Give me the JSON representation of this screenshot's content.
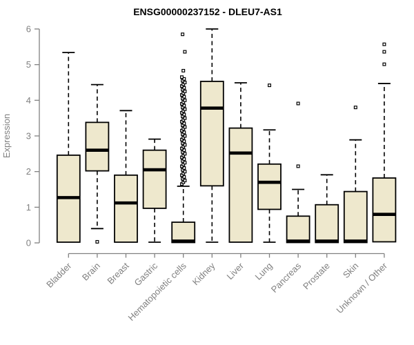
{
  "title": "ENSG00000237152 - DLEU7-AS1",
  "colors": {
    "background": "#FFFFFF",
    "box_fill": "#EEE8CD",
    "box_stroke": "#000000",
    "median_stroke": "#000000",
    "whisker_stroke": "#000000",
    "outlier_stroke": "#000000",
    "outlier_fill": "#FFFFFF",
    "axis_color": "#808080",
    "tick_label_color": "#808080",
    "title_color": "#000000"
  },
  "chart_data": {
    "type": "boxplot",
    "title": "ENSG00000237152 - DLEU7-AS1",
    "xlabel": "",
    "ylabel": "Expression",
    "ylim": [
      0,
      6
    ],
    "yticks": [
      0,
      1,
      2,
      3,
      4,
      5,
      6
    ],
    "grid": false,
    "legend_position": "none",
    "categories": [
      "Bladder",
      "Brain",
      "Breast",
      "Gastric",
      "Hematopoietic cells",
      "Kidney",
      "Liver",
      "Lung",
      "Pancreas",
      "Prostate",
      "Skin",
      "Unknown / Other"
    ],
    "series": [
      {
        "name": "Bladder",
        "whisker_low": 0.0,
        "q1": 0.02,
        "median": 1.27,
        "q3": 2.46,
        "whisker_high": 5.34,
        "outliers": []
      },
      {
        "name": "Brain",
        "whisker_low": 0.4,
        "q1": 2.02,
        "median": 2.6,
        "q3": 3.38,
        "whisker_high": 4.44,
        "outliers": [
          0.03
        ]
      },
      {
        "name": "Breast",
        "whisker_low": 0.0,
        "q1": 0.02,
        "median": 1.12,
        "q3": 1.9,
        "whisker_high": 3.71,
        "outliers": []
      },
      {
        "name": "Gastric",
        "whisker_low": 0.02,
        "q1": 0.97,
        "median": 2.05,
        "q3": 2.6,
        "whisker_high": 2.91,
        "outliers": []
      },
      {
        "name": "Hematopoietic cells",
        "whisker_low": 0.0,
        "q1": 0.01,
        "median": 0.05,
        "q3": 0.58,
        "whisker_high": 1.59,
        "outliers": [
          1.65,
          1.7,
          1.75,
          1.8,
          1.85,
          1.9,
          1.95,
          2.0,
          2.05,
          2.1,
          2.15,
          2.2,
          2.25,
          2.3,
          2.35,
          2.4,
          2.45,
          2.5,
          2.55,
          2.6,
          2.65,
          2.7,
          2.75,
          2.8,
          2.85,
          2.9,
          2.95,
          3.0,
          3.05,
          3.1,
          3.15,
          3.2,
          3.25,
          3.3,
          3.35,
          3.4,
          3.45,
          3.5,
          3.55,
          3.6,
          3.65,
          3.7,
          3.75,
          3.8,
          3.85,
          3.9,
          3.95,
          4.0,
          4.05,
          4.1,
          4.15,
          4.2,
          4.25,
          4.3,
          4.35,
          4.4,
          4.45,
          4.5,
          4.55,
          4.6,
          4.65,
          4.83,
          5.36,
          5.85
        ]
      },
      {
        "name": "Kidney",
        "whisker_low": 0.02,
        "q1": 1.6,
        "median": 3.78,
        "q3": 4.53,
        "whisker_high": 6.0,
        "outliers": []
      },
      {
        "name": "Liver",
        "whisker_low": 0.0,
        "q1": 0.02,
        "median": 2.52,
        "q3": 3.22,
        "whisker_high": 4.49,
        "outliers": []
      },
      {
        "name": "Lung",
        "whisker_low": 0.02,
        "q1": 0.94,
        "median": 1.7,
        "q3": 2.21,
        "whisker_high": 3.17,
        "outliers": [
          4.42
        ]
      },
      {
        "name": "Pancreas",
        "whisker_low": 0.0,
        "q1": 0.01,
        "median": 0.05,
        "q3": 0.75,
        "whisker_high": 1.5,
        "outliers": [
          2.15,
          3.91
        ]
      },
      {
        "name": "Prostate",
        "whisker_low": 0.0,
        "q1": 0.01,
        "median": 0.05,
        "q3": 1.07,
        "whisker_high": 1.91,
        "outliers": []
      },
      {
        "name": "Skin",
        "whisker_low": 0.0,
        "q1": 0.01,
        "median": 0.05,
        "q3": 1.44,
        "whisker_high": 2.89,
        "outliers": [
          3.8
        ]
      },
      {
        "name": "Unknown / Other",
        "whisker_low": 0.02,
        "q1": 0.03,
        "median": 0.8,
        "q3": 1.82,
        "whisker_high": 4.47,
        "outliers": [
          5.01,
          5.36,
          5.57
        ]
      }
    ]
  }
}
